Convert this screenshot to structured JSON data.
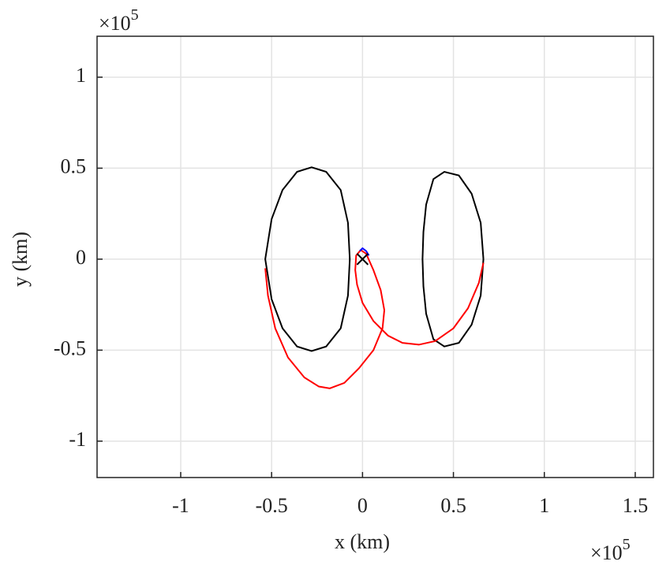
{
  "chart_data": {
    "type": "line",
    "xlabel": "x (km)",
    "ylabel": "y (km)",
    "x_multiplier": {
      "base": "×10",
      "power": "5"
    },
    "y_multiplier": {
      "base": "×10",
      "power": "5"
    },
    "xlim": [
      -1.46,
      1.6
    ],
    "ylim": [
      -1.2,
      1.225
    ],
    "xticks": [
      -1,
      -0.5,
      0,
      0.5,
      1,
      1.5
    ],
    "yticks": [
      -1,
      -0.5,
      0,
      0.5,
      1
    ],
    "grid": true,
    "series": [
      {
        "color": "#000000",
        "marker": "none",
        "x": [
          -0.07,
          -0.08,
          -0.12,
          -0.2,
          -0.28,
          -0.36,
          -0.44,
          -0.5,
          -0.535,
          -0.5,
          -0.44,
          -0.36,
          -0.28,
          -0.2,
          -0.12,
          -0.08,
          -0.07
        ],
        "values": [
          0,
          0.2,
          0.38,
          0.48,
          0.505,
          0.48,
          0.38,
          0.22,
          0,
          -0.22,
          -0.38,
          -0.48,
          -0.505,
          -0.48,
          -0.38,
          -0.2,
          0
        ]
      },
      {
        "color": "#000000",
        "marker": "none",
        "x": [
          0.665,
          0.65,
          0.6,
          0.53,
          0.45,
          0.39,
          0.35,
          0.335,
          0.33,
          0.335,
          0.35,
          0.39,
          0.45,
          0.53,
          0.6,
          0.65,
          0.665
        ],
        "values": [
          0,
          0.2,
          0.36,
          0.46,
          0.48,
          0.44,
          0.3,
          0.15,
          0,
          -0.15,
          -0.3,
          -0.44,
          -0.48,
          -0.46,
          -0.36,
          -0.2,
          0
        ]
      },
      {
        "color": "#ff0000",
        "marker": "none",
        "x": [
          -0.535,
          -0.52,
          -0.48,
          -0.41,
          -0.32,
          -0.24,
          -0.18,
          -0.1,
          -0.02,
          0.06,
          0.11,
          0.12,
          0.1,
          0.06,
          0.02,
          -0.01,
          -0.035,
          -0.04,
          -0.03,
          0.0,
          0.06,
          0.14,
          0.22,
          0.31,
          0.4,
          0.5,
          0.58,
          0.64,
          0.665
        ],
        "values": [
          -0.05,
          -0.2,
          -0.38,
          -0.54,
          -0.65,
          -0.7,
          -0.71,
          -0.68,
          -0.6,
          -0.5,
          -0.38,
          -0.28,
          -0.17,
          -0.06,
          0.03,
          0.05,
          0.02,
          -0.06,
          -0.14,
          -0.24,
          -0.34,
          -0.42,
          -0.46,
          -0.47,
          -0.45,
          -0.38,
          -0.27,
          -0.13,
          -0.02
        ]
      },
      {
        "color": "#0000ff",
        "marker": "none",
        "x": [
          -0.015,
          0.0,
          0.02,
          0.035
        ],
        "values": [
          0.045,
          0.06,
          0.045,
          0.02
        ]
      },
      {
        "color": "#000000",
        "marker": "x",
        "x": [
          0
        ],
        "values": [
          0
        ]
      }
    ]
  }
}
